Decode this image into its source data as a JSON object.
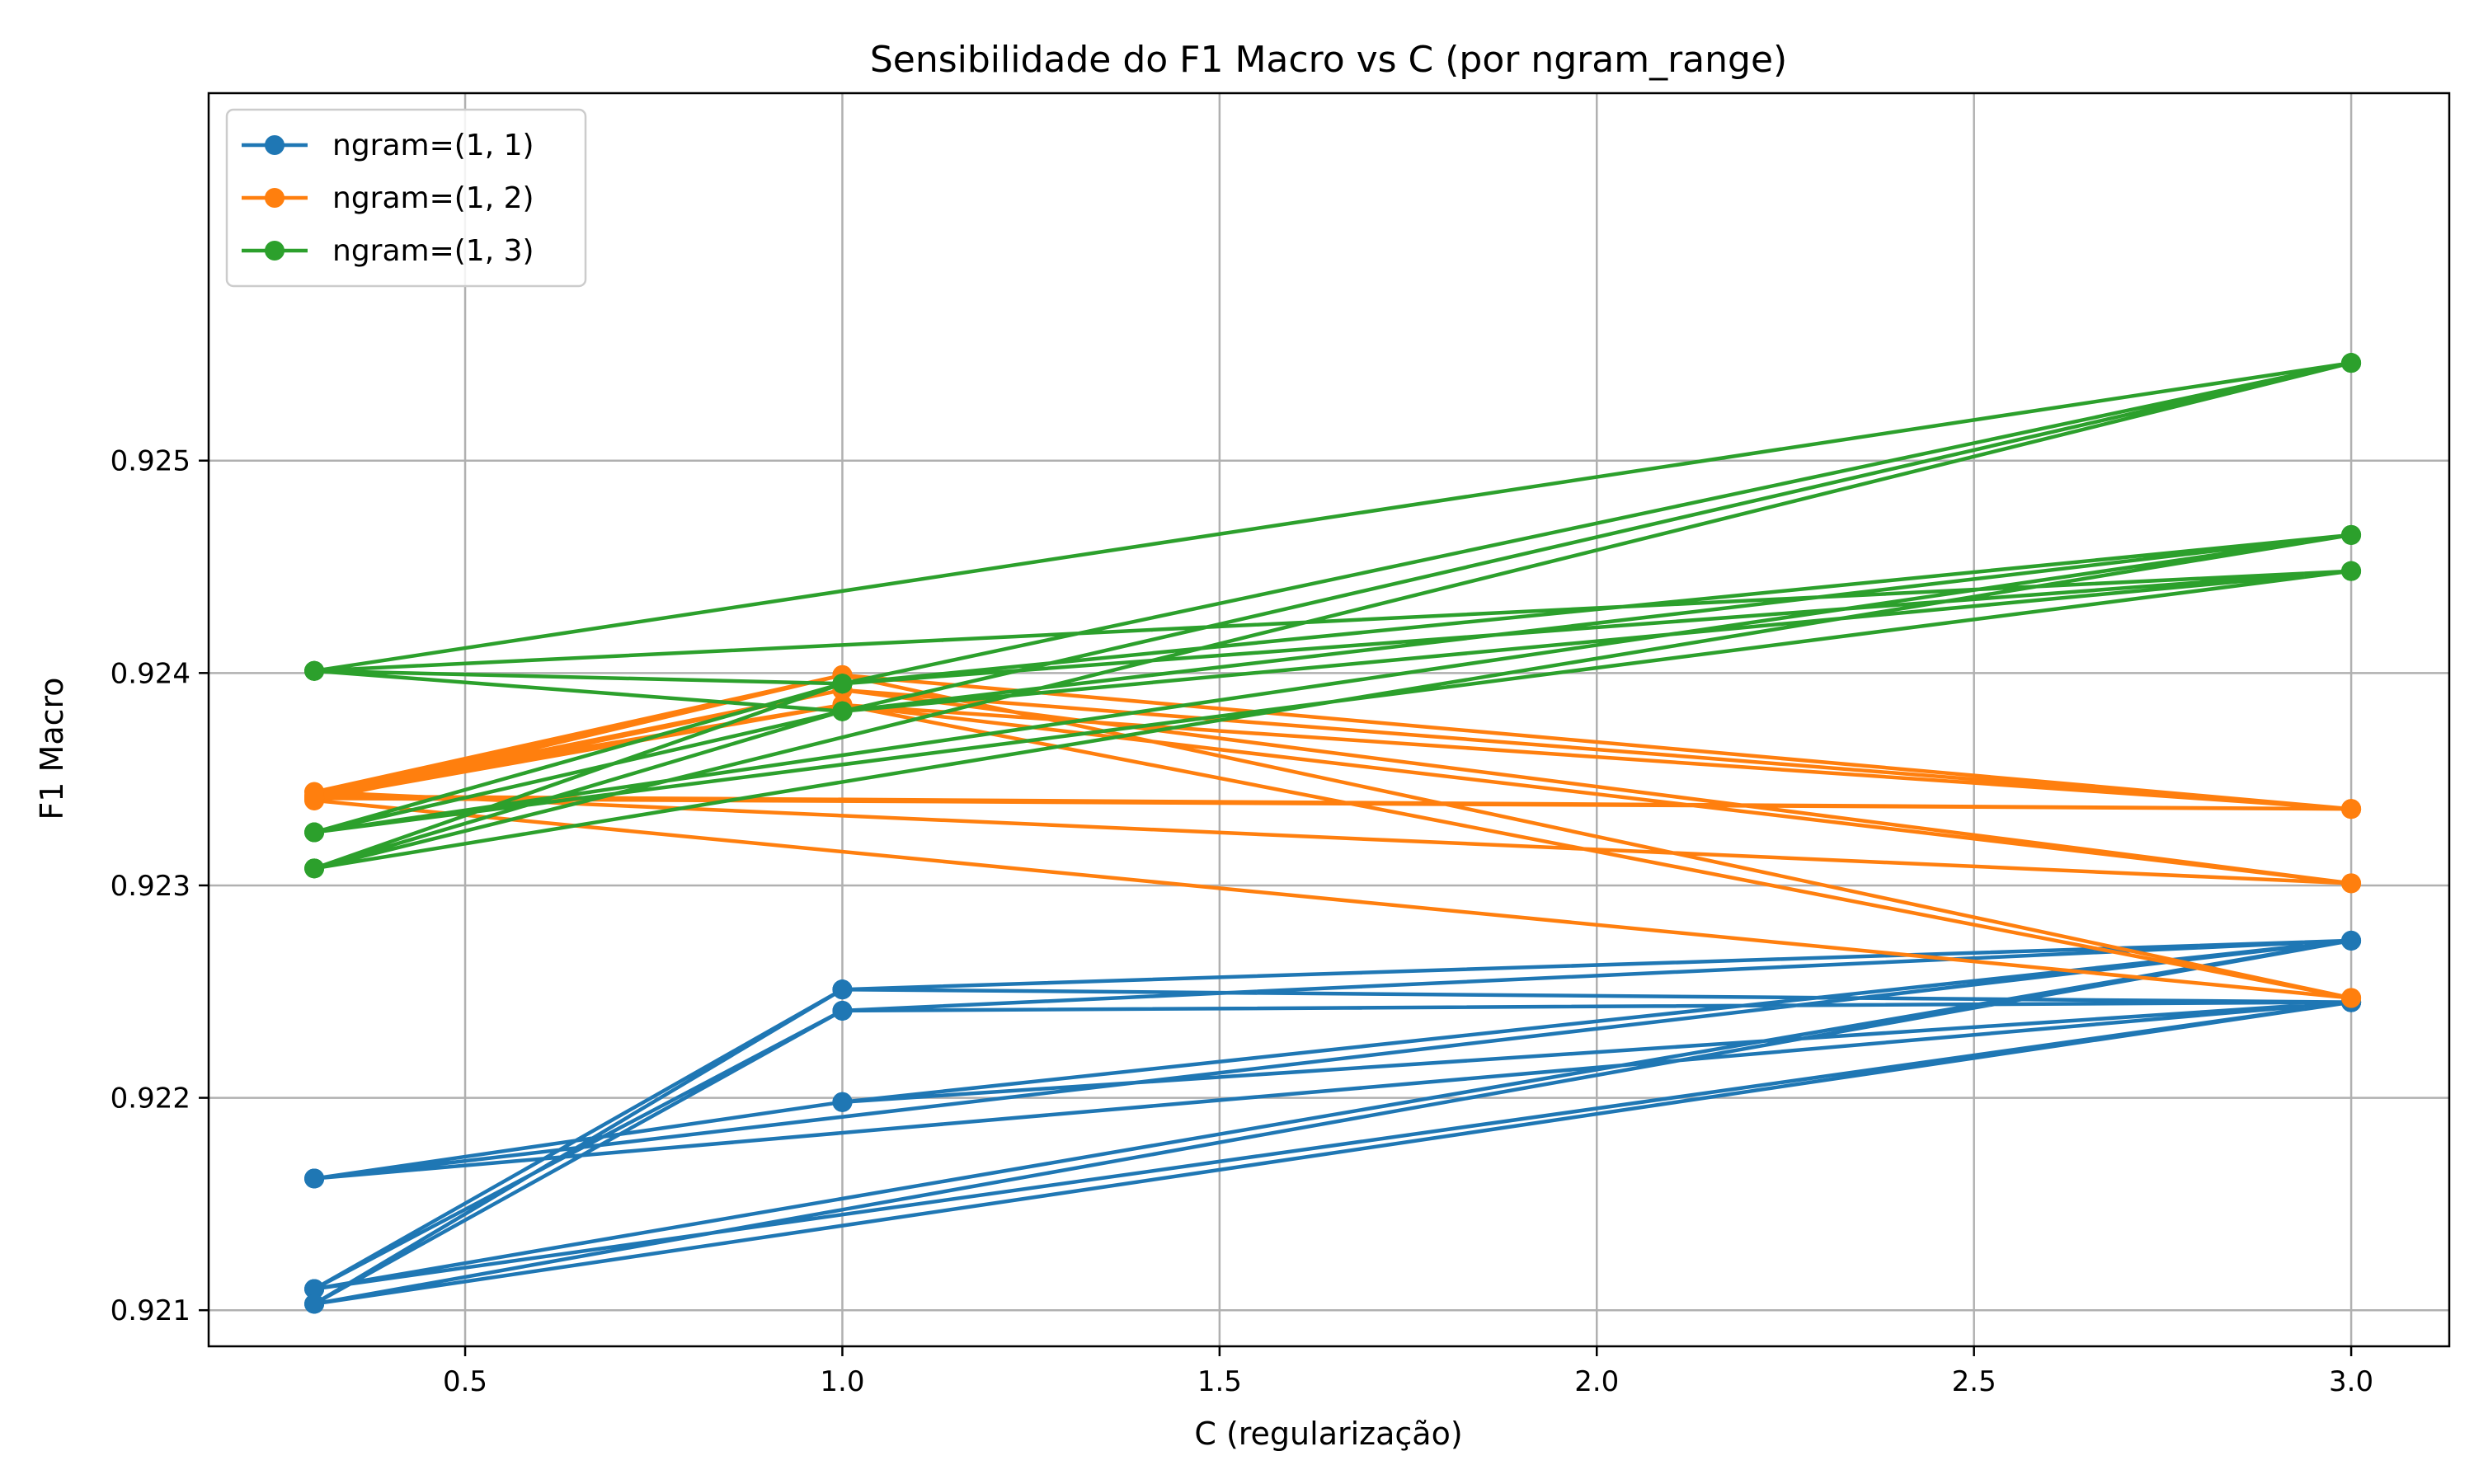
{
  "chart_data": {
    "type": "line",
    "title": "Sensibilidade do F1 Macro vs C (por ngram_range)",
    "xlabel": "C (regularização)",
    "ylabel": "F1 Macro",
    "xlim": [
      0.16,
      3.13
    ],
    "ylim": [
      0.92083,
      0.92673
    ],
    "xticks": [
      0.5,
      1.0,
      1.5,
      2.0,
      2.5,
      3.0
    ],
    "xtick_labels": [
      "0.5",
      "1.0",
      "1.5",
      "2.0",
      "2.5",
      "3.0"
    ],
    "yticks": [
      0.921,
      0.922,
      0.923,
      0.924,
      0.925
    ],
    "ytick_labels": [
      "0.921",
      "0.922",
      "0.923",
      "0.924",
      "0.925"
    ],
    "grid": true,
    "legend_position": "top-left",
    "marker": "circle",
    "series": [
      {
        "name": "ngram=(1, 1)",
        "color": "#1f77b4",
        "points": [
          [
            0.3,
            0.92103
          ],
          [
            1.0,
            0.92251
          ],
          [
            3.0,
            0.92274
          ],
          [
            0.3,
            0.92162
          ],
          [
            1.0,
            0.92198
          ],
          [
            3.0,
            0.92245
          ],
          [
            0.3,
            0.9211
          ],
          [
            1.0,
            0.92241
          ],
          [
            3.0,
            0.92245
          ],
          [
            0.3,
            0.92162
          ],
          [
            1.0,
            0.92198
          ],
          [
            3.0,
            0.92274
          ],
          [
            0.3,
            0.9211
          ],
          [
            1.0,
            0.92251
          ],
          [
            3.0,
            0.92245
          ],
          [
            0.3,
            0.92103
          ],
          [
            1.0,
            0.92241
          ],
          [
            3.0,
            0.92245
          ],
          [
            0.3,
            0.92162
          ],
          [
            1.0,
            0.92198
          ],
          [
            3.0,
            0.92245
          ],
          [
            0.3,
            0.9211
          ],
          [
            1.0,
            0.92241
          ],
          [
            3.0,
            0.92274
          ],
          [
            0.3,
            0.92103
          ],
          [
            1.0,
            0.92251
          ],
          [
            3.0,
            0.92245
          ],
          [
            0.3,
            0.92162
          ],
          [
            1.0,
            0.92198
          ],
          [
            3.0,
            0.92245
          ]
        ]
      },
      {
        "name": "ngram=(1, 2)",
        "color": "#ff7f0e",
        "points": [
          [
            0.3,
            0.92342
          ],
          [
            1.0,
            0.92399
          ],
          [
            3.0,
            0.92336
          ],
          [
            0.3,
            0.92341
          ],
          [
            1.0,
            0.92392
          ],
          [
            3.0,
            0.92301
          ],
          [
            0.3,
            0.92344
          ],
          [
            1.0,
            0.92385
          ],
          [
            3.0,
            0.92247
          ],
          [
            0.3,
            0.9234
          ],
          [
            1.0,
            0.92399
          ],
          [
            3.0,
            0.92336
          ],
          [
            0.3,
            0.92342
          ],
          [
            1.0,
            0.92392
          ],
          [
            3.0,
            0.92336
          ],
          [
            0.3,
            0.92341
          ],
          [
            1.0,
            0.92385
          ],
          [
            3.0,
            0.92301
          ],
          [
            0.3,
            0.92344
          ],
          [
            1.0,
            0.92399
          ],
          [
            3.0,
            0.92247
          ],
          [
            0.3,
            0.9234
          ],
          [
            1.0,
            0.92392
          ],
          [
            3.0,
            0.92336
          ],
          [
            0.3,
            0.92342
          ],
          [
            1.0,
            0.92385
          ],
          [
            3.0,
            0.92336
          ],
          [
            0.3,
            0.92341
          ],
          [
            1.0,
            0.92399
          ],
          [
            3.0,
            0.92247
          ]
        ]
      },
      {
        "name": "ngram=(1, 3)",
        "color": "#2ca02c",
        "points": [
          [
            0.3,
            0.92401
          ],
          [
            1.0,
            0.92382
          ],
          [
            3.0,
            0.92465
          ],
          [
            0.3,
            0.92325
          ],
          [
            1.0,
            0.92395
          ],
          [
            3.0,
            0.92546
          ],
          [
            0.3,
            0.92308
          ],
          [
            1.0,
            0.92395
          ],
          [
            3.0,
            0.92448
          ],
          [
            0.3,
            0.92401
          ],
          [
            1.0,
            0.92382
          ],
          [
            3.0,
            0.92448
          ],
          [
            0.3,
            0.92325
          ],
          [
            1.0,
            0.92382
          ],
          [
            3.0,
            0.92465
          ],
          [
            0.3,
            0.92308
          ],
          [
            1.0,
            0.92395
          ],
          [
            3.0,
            0.92546
          ],
          [
            0.3,
            0.92401
          ],
          [
            1.0,
            0.92382
          ],
          [
            3.0,
            0.92448
          ],
          [
            0.3,
            0.92325
          ],
          [
            1.0,
            0.92395
          ],
          [
            3.0,
            0.92465
          ],
          [
            0.3,
            0.92308
          ],
          [
            1.0,
            0.92382
          ],
          [
            3.0,
            0.92546
          ],
          [
            0.3,
            0.92401
          ],
          [
            1.0,
            0.92395
          ],
          [
            3.0,
            0.92546
          ]
        ]
      }
    ]
  }
}
